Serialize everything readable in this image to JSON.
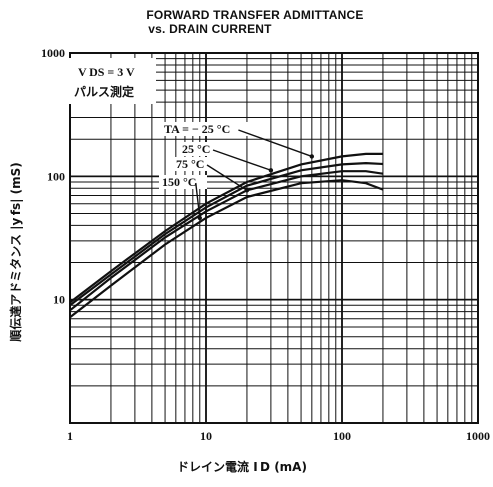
{
  "title_line1": "FORWARD TRANSFER ADMITTANCE",
  "title_line2": "vs. DRAIN CURRENT",
  "conditions": {
    "vds": "V DS = 3 V",
    "method": "パルス測定"
  },
  "chart_data": {
    "type": "line",
    "title": "FORWARD TRANSFER ADMITTANCE vs. DRAIN CURRENT",
    "xlabel": "ドレイン電流 I D (mA)",
    "ylabel": "順伝達アドミタンス |y fs| (mS)",
    "x_scale": "log",
    "y_scale": "log",
    "xlim": [
      1,
      1000
    ],
    "ylim": [
      1,
      1000
    ],
    "grid": true,
    "x_ticks": [
      "1",
      "10",
      "100",
      "1000"
    ],
    "y_ticks": [
      "10",
      "100",
      "1000"
    ],
    "x": [
      1,
      2,
      5,
      10,
      20,
      50,
      100,
      150,
      200
    ],
    "series": [
      {
        "name": "TA = − 25 °C",
        "values": [
          9.5,
          17,
          36,
          60,
          90,
          125,
          145,
          152,
          152
        ]
      },
      {
        "name": "25 °C",
        "values": [
          9,
          16,
          34,
          56,
          84,
          112,
          125,
          128,
          126
        ]
      },
      {
        "name": "75 °C",
        "values": [
          8.2,
          15,
          32,
          52,
          77,
          100,
          110,
          110,
          105
        ]
      },
      {
        "name": "150 °C",
        "values": [
          7.2,
          13,
          28,
          46,
          68,
          88,
          93,
          88,
          78
        ]
      }
    ]
  }
}
